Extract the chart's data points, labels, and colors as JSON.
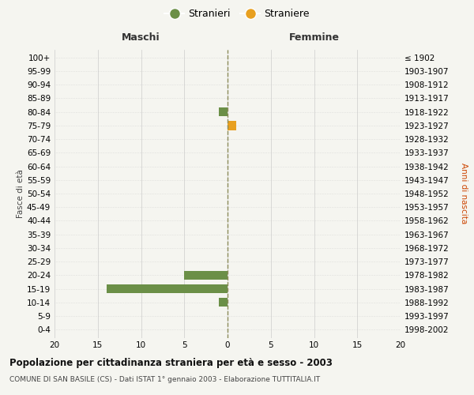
{
  "age_groups": [
    "0-4",
    "5-9",
    "10-14",
    "15-19",
    "20-24",
    "25-29",
    "30-34",
    "35-39",
    "40-44",
    "45-49",
    "50-54",
    "55-59",
    "60-64",
    "65-69",
    "70-74",
    "75-79",
    "80-84",
    "85-89",
    "90-94",
    "95-99",
    "100+"
  ],
  "birth_years": [
    "1998-2002",
    "1993-1997",
    "1988-1992",
    "1983-1987",
    "1978-1982",
    "1973-1977",
    "1968-1972",
    "1963-1967",
    "1958-1962",
    "1953-1957",
    "1948-1952",
    "1943-1947",
    "1938-1942",
    "1933-1937",
    "1928-1932",
    "1923-1927",
    "1918-1922",
    "1913-1917",
    "1908-1912",
    "1903-1907",
    "≤ 1902"
  ],
  "maschi_stranieri": [
    0,
    0,
    1,
    14,
    5,
    0,
    0,
    0,
    0,
    0,
    0,
    0,
    0,
    0,
    0,
    0,
    1,
    0,
    0,
    0,
    0
  ],
  "femmine_straniere": [
    0,
    0,
    0,
    0,
    0,
    0,
    0,
    0,
    0,
    0,
    0,
    0,
    0,
    0,
    0,
    1,
    0,
    0,
    0,
    0,
    0
  ],
  "color_maschi": "#6b8f47",
  "color_femmine": "#e8a020",
  "xlim": 20,
  "title": "Popolazione per cittadinanza straniera per età e sesso - 2003",
  "subtitle": "COMUNE DI SAN BASILE (CS) - Dati ISTAT 1° gennaio 2003 - Elaborazione TUTTITALIA.IT",
  "ylabel_left": "Fasce di età",
  "ylabel_right": "Anni di nascita",
  "legend_maschi": "Stranieri",
  "legend_femmine": "Straniere",
  "maschi_label": "Maschi",
  "femmine_label": "Femmine",
  "bg_color": "#f5f5f0",
  "grid_color": "#cccccc",
  "bar_height": 0.65
}
